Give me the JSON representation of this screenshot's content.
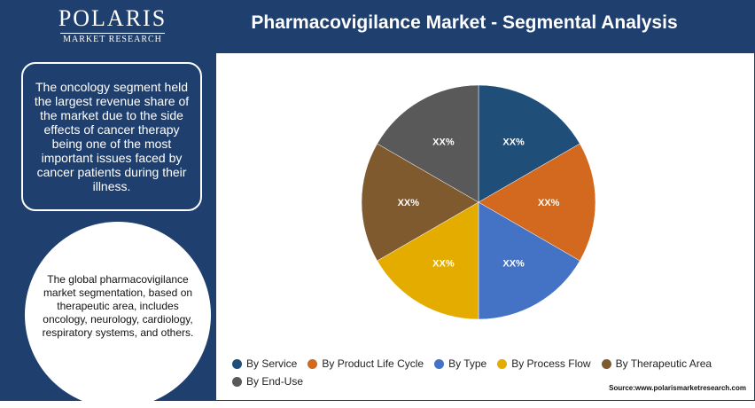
{
  "header": {
    "logo_main": "POLARIS",
    "logo_sub": "MARKET RESEARCH",
    "title": "Pharmacovigilance Market - Segmental Analysis"
  },
  "sidebar": {
    "box_text": "The oncology segment held the largest revenue share of the market due to the side effects of cancer therapy being one of the most important issues faced by cancer patients during their illness.",
    "circle_text": "The global pharmacovigilance market segmentation, based on therapeutic area, includes oncology, neurology, cardiology, respiratory systems, and others."
  },
  "footer": {
    "source": "Source:www.polarismarketresearch.com"
  },
  "chart_data": {
    "type": "pie",
    "title": "Pharmacovigilance Market - Segmental Analysis",
    "categories": [
      "By Service",
      "By Product Life Cycle",
      "By Type",
      "By Process Flow",
      "By Therapeutic Area",
      "By End-Use"
    ],
    "values": [
      1,
      1,
      1,
      1,
      1,
      1
    ],
    "labels": [
      "XX%",
      "XX%",
      "XX%",
      "XX%",
      "XX%",
      "XX%"
    ],
    "colors": [
      "#1f4e79",
      "#d2691e",
      "#4472c4",
      "#e5ac00",
      "#7f5a2e",
      "#595959"
    ],
    "legend_position": "bottom"
  }
}
